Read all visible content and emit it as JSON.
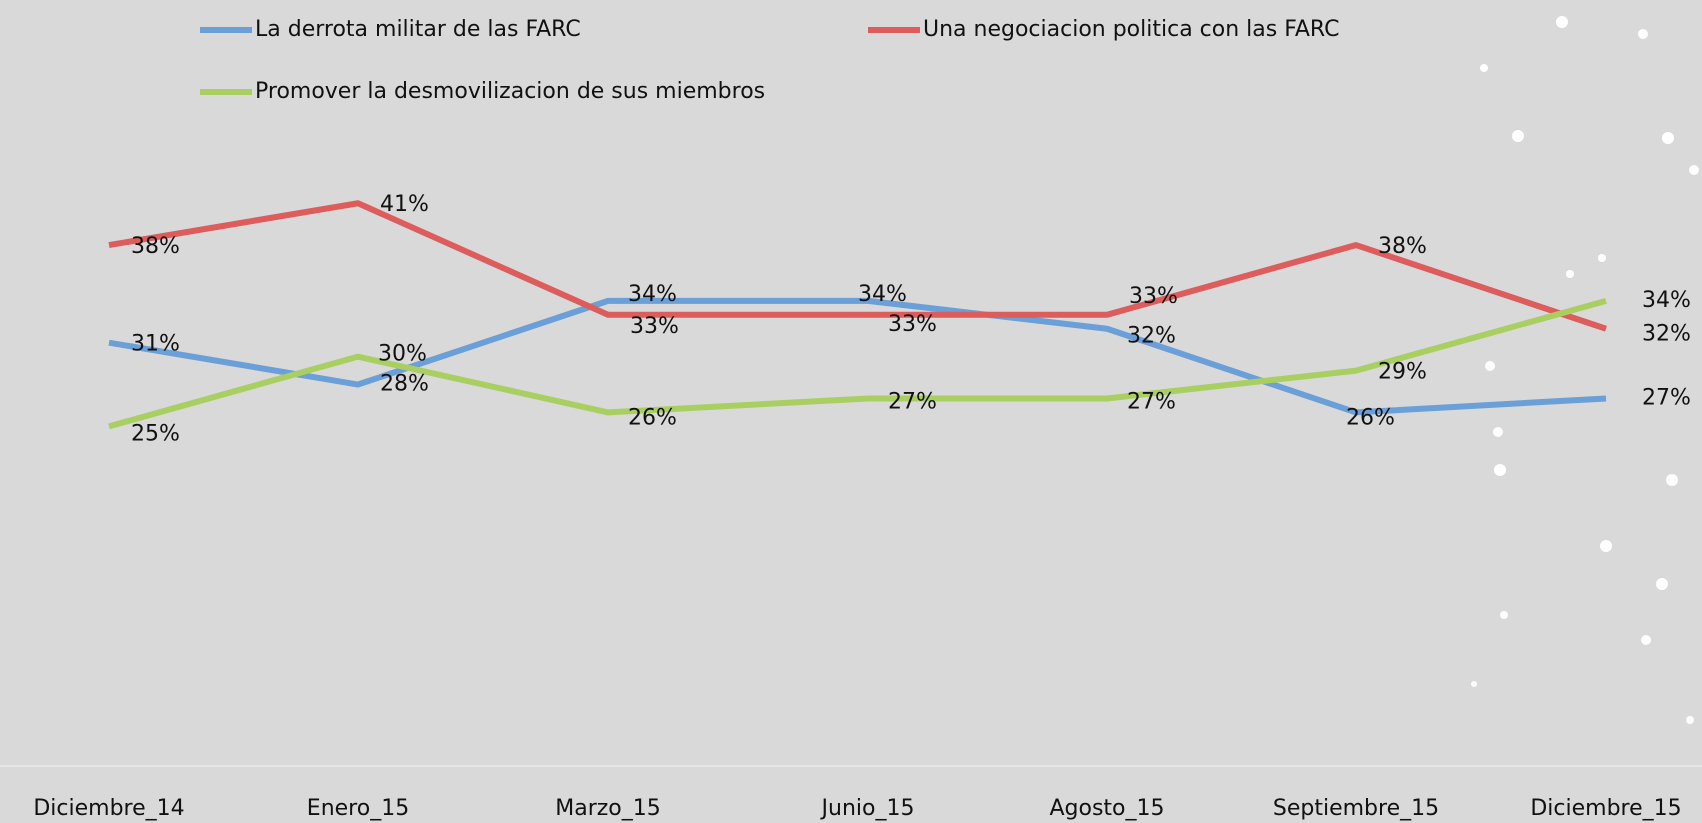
{
  "chart_data": {
    "type": "line",
    "categories": [
      "Diciembre_14",
      "Enero_15",
      "Marzo_15",
      "Junio_15",
      "Agosto_15",
      "Septiembre_15",
      "Diciembre_15"
    ],
    "ylim": [
      0,
      55
    ],
    "series": [
      {
        "name": "La derrota militar de las FARC",
        "color": "#6a9fd8",
        "values": [
          31,
          28,
          34,
          34,
          32,
          26,
          27
        ],
        "value_labels": [
          "31%",
          "28%",
          "34%",
          "34%",
          "32%",
          "26%",
          "27%"
        ]
      },
      {
        "name": "Una negociacion politica con las FARC",
        "color": "#dd5c5c",
        "values": [
          38,
          41,
          33,
          33,
          33,
          38,
          32
        ],
        "value_labels": [
          "38%",
          "41%",
          "33%",
          "33%",
          "33%",
          "38%",
          "32%"
        ]
      },
      {
        "name": "Promover la desmovilizacion de sus miembros",
        "color": "#a9cf62",
        "values": [
          25,
          30,
          26,
          27,
          27,
          29,
          34
        ],
        "value_labels": [
          "25%",
          "30%",
          "26%",
          "27%",
          "27%",
          "29%",
          "34%"
        ]
      }
    ]
  }
}
